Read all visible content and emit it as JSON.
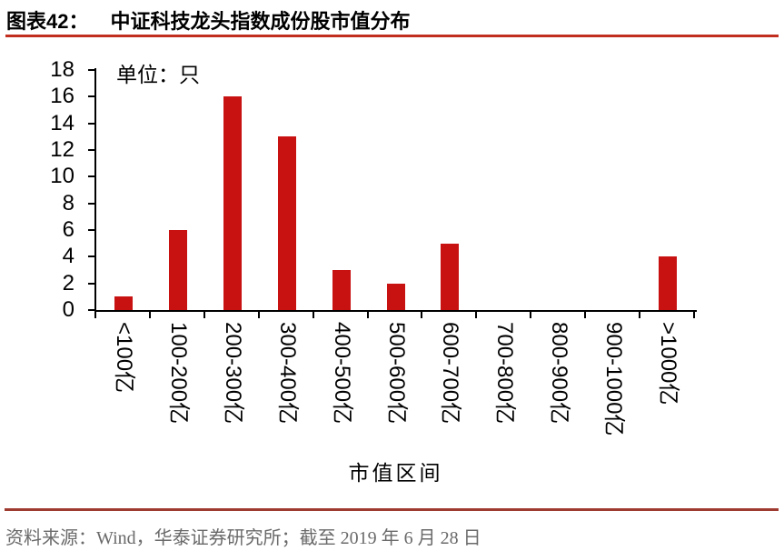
{
  "header": {
    "figure_label": "图表42：",
    "title": "中证科技龙头指数成份股市值分布"
  },
  "chart_data": {
    "type": "bar",
    "title": "中证科技龙头指数成份股市值分布",
    "unit_label": "单位：只",
    "xlabel": "市值区间",
    "ylabel": "",
    "categories": [
      "<100亿",
      "100-200亿",
      "200-300亿",
      "300-400亿",
      "400-500亿",
      "500-600亿",
      "600-700亿",
      "700-800亿",
      "800-900亿",
      "900-1000亿",
      ">1000亿"
    ],
    "values": [
      1,
      6,
      16,
      13,
      3,
      2,
      5,
      0,
      0,
      0,
      4
    ],
    "ylim": [
      0,
      18
    ],
    "y_ticks": [
      0,
      2,
      4,
      6,
      8,
      10,
      12,
      14,
      16,
      18
    ],
    "grid": false,
    "legend": "none",
    "bar_color": "#c81212"
  },
  "footer": {
    "source": "资料来源：Wind，华泰证券研究所；截至 2019 年 6 月 28 日"
  },
  "colors": {
    "top_rule": "#c12e1d",
    "bottom_rule": "#9e3b30",
    "bar": "#c81212",
    "axis": "#000000",
    "source_text": "#6a6a6a"
  }
}
